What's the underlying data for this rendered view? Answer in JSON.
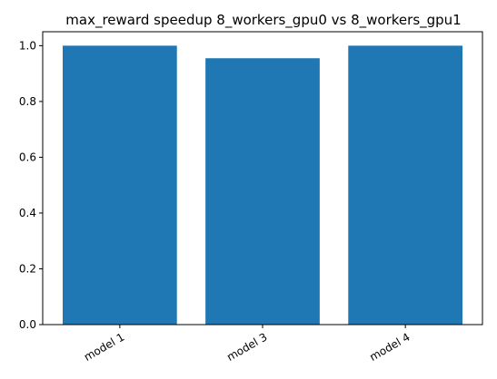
{
  "chart_data": {
    "type": "bar",
    "title": "max_reward speedup 8_workers_gpu0 vs 8_workers_gpu1",
    "xlabel": "",
    "ylabel": "",
    "categories": [
      "model 1",
      "model 3",
      "model 4"
    ],
    "values": [
      1.0,
      0.955,
      1.0
    ],
    "ylim": [
      0,
      1.05
    ],
    "yticks": [
      0.0,
      0.2,
      0.4,
      0.6,
      0.8,
      1.0
    ],
    "ytick_labels": [
      "0.0",
      "0.2",
      "0.4",
      "0.6",
      "0.8",
      "1.0"
    ],
    "grid": false,
    "legend": "none",
    "bar_color": "#1f77b4"
  }
}
